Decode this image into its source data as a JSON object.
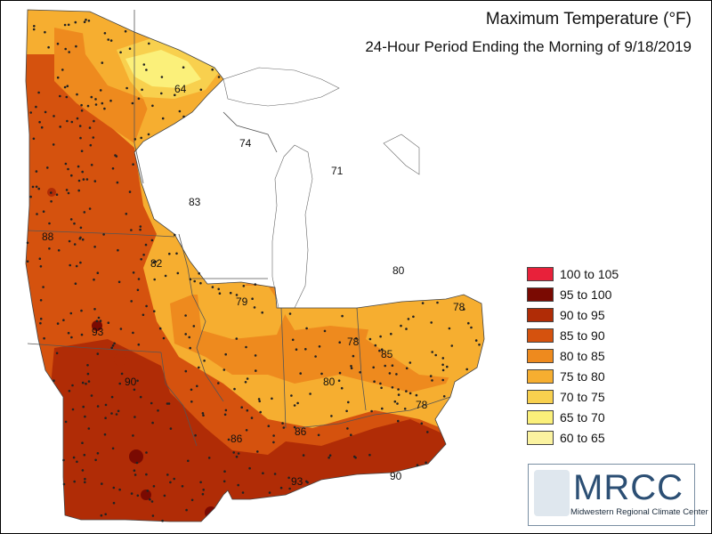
{
  "title": "Maximum Temperature (°F)",
  "subtitle": "24-Hour Period Ending the Morning of 9/18/2019",
  "legend": [
    {
      "label": "100 to 105",
      "color": "#e8213a"
    },
    {
      "label": "95 to 100",
      "color": "#7a0a02"
    },
    {
      "label": "90 to 95",
      "color": "#b02c06"
    },
    {
      "label": "85 to 90",
      "color": "#d5520e"
    },
    {
      "label": "80 to 85",
      "color": "#ee8a1e"
    },
    {
      "label": "75 to 80",
      "color": "#f6ae30"
    },
    {
      "label": "70 to 75",
      "color": "#f8d04e"
    },
    {
      "label": "65 to 70",
      "color": "#fbf07a"
    },
    {
      "label": "60 to 65",
      "color": "#fbf3a0"
    }
  ],
  "contour_labels": [
    {
      "id": "64",
      "text": "64"
    },
    {
      "id": "74",
      "text": "74"
    },
    {
      "id": "71",
      "text": "71"
    },
    {
      "id": "83",
      "text": "83"
    },
    {
      "id": "88",
      "text": "88"
    },
    {
      "id": "82",
      "text": "82"
    },
    {
      "id": "80-mi",
      "text": "80"
    },
    {
      "id": "79",
      "text": "79"
    },
    {
      "id": "78-oh",
      "text": "78"
    },
    {
      "id": "93-mo",
      "text": "93"
    },
    {
      "id": "78-in",
      "text": "78"
    },
    {
      "id": "85",
      "text": "85"
    },
    {
      "id": "90-mo",
      "text": "90"
    },
    {
      "id": "80-il",
      "text": "80"
    },
    {
      "id": "78-ky",
      "text": "78"
    },
    {
      "id": "86-il",
      "text": "86"
    },
    {
      "id": "86-ky",
      "text": "86"
    },
    {
      "id": "93-ky",
      "text": "93"
    },
    {
      "id": "90-ky",
      "text": "90"
    }
  ],
  "logo": {
    "name": "MRCC",
    "subtitle": "Midwestern Regional Climate Center"
  }
}
